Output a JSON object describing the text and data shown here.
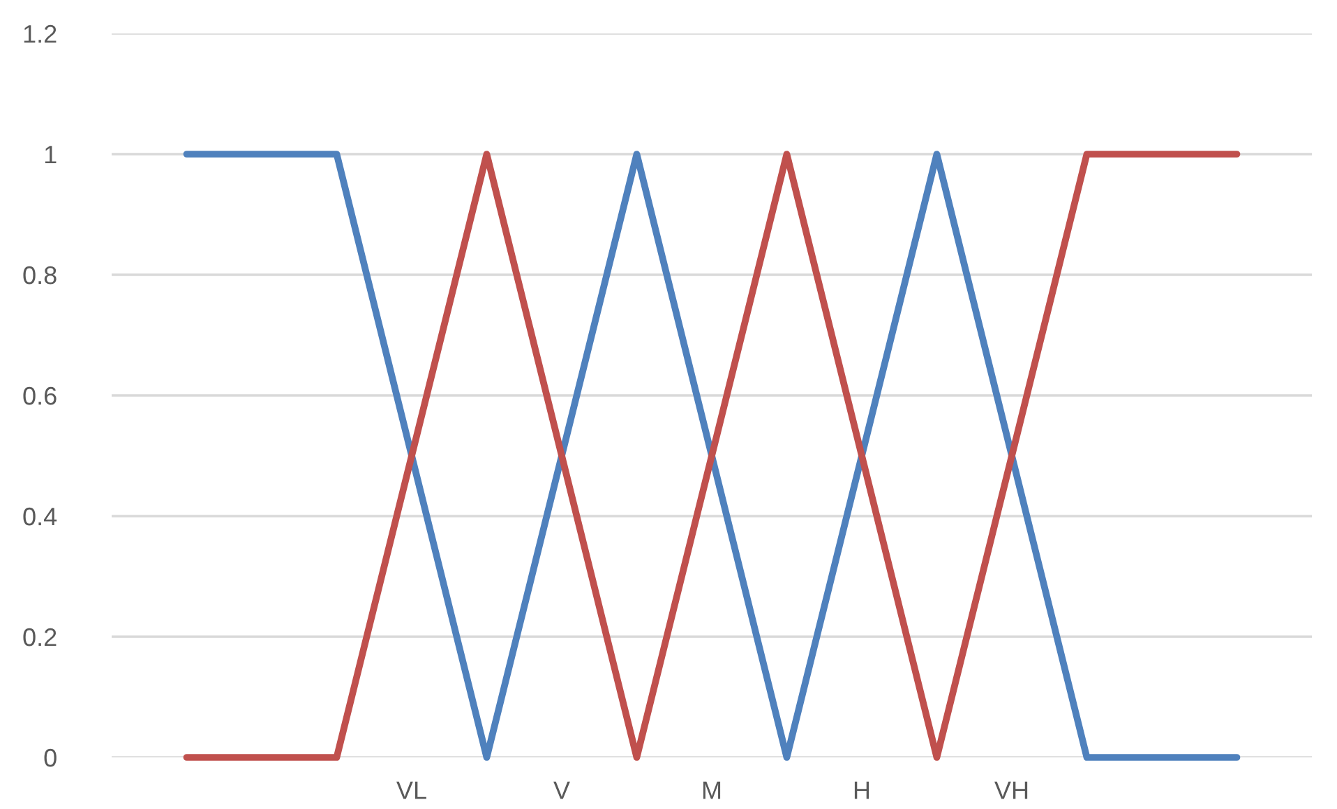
{
  "chart_data": {
    "type": "line",
    "categories": [
      null,
      null,
      null,
      "VL",
      null,
      "V",
      null,
      "M",
      null,
      "H",
      null,
      "VH",
      null,
      null,
      null
    ],
    "series": [
      {
        "color": "#4f81bd",
        "values": [
          1,
          1,
          1,
          0.5,
          0,
          0.5,
          1,
          0.5,
          0,
          0.5,
          1,
          0.5,
          0,
          0,
          0
        ]
      },
      {
        "color": "#c0504d",
        "values": [
          0,
          0,
          0,
          0.5,
          1,
          0.5,
          0,
          0.5,
          1,
          0.5,
          0,
          0.5,
          1,
          1,
          1
        ]
      }
    ],
    "ylim": [
      0,
      1.2
    ],
    "yticks": [
      0,
      0.2,
      0.4,
      0.6,
      0.8,
      1,
      1.2
    ],
    "grid": "y",
    "marker": "none",
    "line_style": "solid"
  }
}
